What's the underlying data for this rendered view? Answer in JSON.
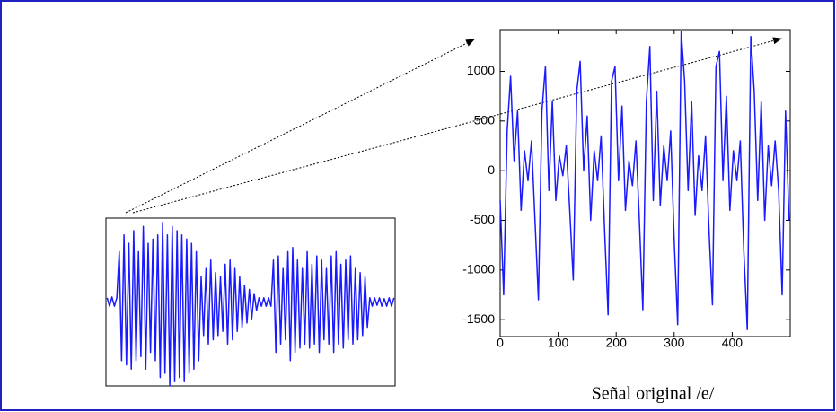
{
  "chart_data": [
    {
      "type": "line",
      "color": "#1a1aff",
      "ylim": [
        -1,
        1
      ],
      "values": [
        0.05,
        -0.05,
        0.06,
        -0.05,
        0.05,
        0.6,
        -0.7,
        0.8,
        -0.75,
        0.7,
        -0.8,
        0.85,
        -0.7,
        0.6,
        -0.65,
        0.9,
        -0.8,
        0.7,
        -0.6,
        0.75,
        -0.7,
        0.8,
        -0.9,
        0.95,
        -0.85,
        0.8,
        -1.0,
        0.9,
        -0.95,
        0.85,
        -0.9,
        0.8,
        -0.95,
        0.75,
        -0.85,
        0.7,
        -0.8,
        0.6,
        -0.7,
        0.3,
        -0.4,
        0.4,
        -0.5,
        0.5,
        -0.45,
        0.35,
        -0.4,
        0.3,
        -0.35,
        0.45,
        -0.5,
        0.5,
        -0.45,
        0.4,
        -0.35,
        0.3,
        -0.3,
        0.2,
        -0.25,
        0.15,
        -0.2,
        0.1,
        -0.1,
        0.05,
        -0.05,
        0.05,
        -0.05,
        0.05,
        -0.05,
        0.5,
        -0.6,
        0.55,
        -0.5,
        0.4,
        -0.45,
        0.6,
        -0.7,
        0.65,
        -0.6,
        0.5,
        -0.55,
        0.4,
        -0.5,
        0.6,
        -0.55,
        0.45,
        -0.5,
        0.55,
        -0.6,
        0.5,
        -0.45,
        0.4,
        -0.5,
        0.55,
        -0.6,
        0.6,
        -0.5,
        0.45,
        -0.55,
        0.5,
        -0.45,
        0.55,
        -0.5,
        0.4,
        -0.45,
        0.35,
        -0.4,
        0.3,
        -0.3,
        0.05,
        -0.05,
        0.05,
        -0.04,
        0.05,
        -0.05,
        0.04,
        -0.05,
        0.05,
        -0.05,
        0.05
      ]
    },
    {
      "type": "line",
      "color": "#1a1aff",
      "caption": "Señal original /e/",
      "xlim": [
        0,
        500
      ],
      "xticks": [
        0,
        100,
        200,
        300,
        400
      ],
      "ylim": [
        -1670,
        1420
      ],
      "yticks": [
        -1500,
        -1000,
        -500,
        0,
        500,
        1000
      ],
      "x": [
        0,
        6,
        12,
        18,
        24,
        30,
        36,
        42,
        48,
        54,
        60,
        66,
        72,
        78,
        84,
        90,
        96,
        102,
        108,
        114,
        120,
        126,
        132,
        138,
        144,
        150,
        156,
        162,
        168,
        174,
        180,
        186,
        192,
        198,
        204,
        210,
        216,
        222,
        228,
        234,
        240,
        246,
        252,
        258,
        264,
        270,
        276,
        282,
        288,
        294,
        300,
        306,
        312,
        318,
        324,
        330,
        336,
        342,
        348,
        354,
        360,
        366,
        372,
        378,
        384,
        390,
        396,
        402,
        408,
        414,
        420,
        426,
        432,
        438,
        444,
        450,
        456,
        462,
        468,
        474,
        480,
        486,
        492,
        498
      ],
      "values": [
        -300,
        -1250,
        400,
        950,
        100,
        600,
        -400,
        200,
        -100,
        300,
        -500,
        -1300,
        600,
        1050,
        -200,
        700,
        -300,
        150,
        -50,
        250,
        -400,
        -1100,
        800,
        1100,
        0,
        550,
        -500,
        200,
        -100,
        350,
        -600,
        -1450,
        900,
        1050,
        -100,
        650,
        -400,
        100,
        -150,
        300,
        -500,
        -1400,
        700,
        1250,
        -300,
        800,
        -350,
        250,
        -100,
        400,
        -700,
        -1550,
        1400,
        900,
        -200,
        700,
        -450,
        150,
        -200,
        350,
        -600,
        -1350,
        1050,
        1200,
        -100,
        750,
        -400,
        200,
        -100,
        300,
        -800,
        -1600,
        1350,
        800,
        -300,
        700,
        -500,
        250,
        -150,
        300,
        -200,
        -1250,
        600,
        -500
      ]
    }
  ]
}
